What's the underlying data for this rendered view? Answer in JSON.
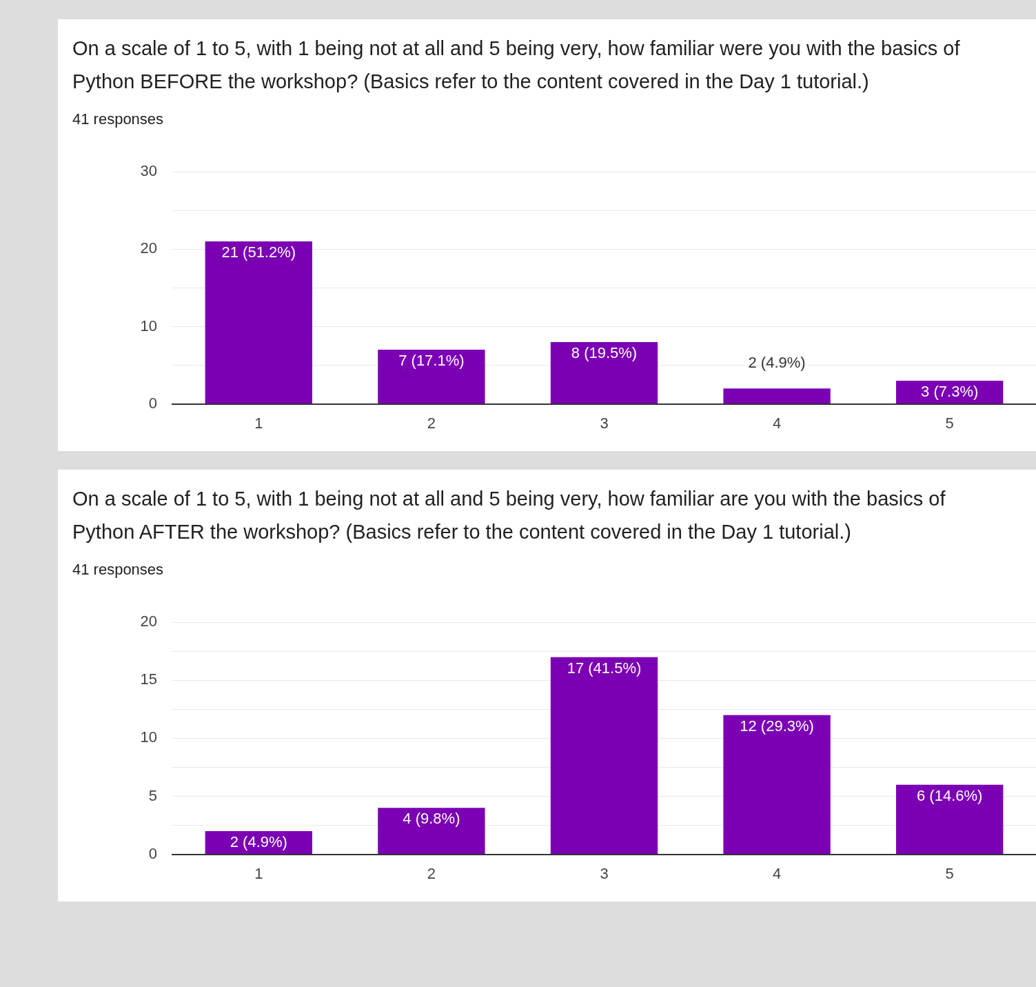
{
  "chart_data": [
    {
      "type": "bar",
      "title": "On a scale of 1 to 5, with 1 being not at all and 5 being very, how familiar were you with the basics of Python BEFORE the workshop? (Basics refer to the content covered in the Day 1 tutorial.)",
      "subtitle": "41 responses",
      "categories": [
        "1",
        "2",
        "3",
        "4",
        "5"
      ],
      "values": [
        21,
        7,
        8,
        2,
        3
      ],
      "color": "#7b00b4",
      "value_labels": [
        "21 (51.2%)",
        "7 (17.1%)",
        "8 (19.5%)",
        "2 (4.9%)",
        "3 (7.3%)"
      ],
      "ylim": [
        0,
        30
      ],
      "yticks": [
        0,
        {
          "value": 5,
          "label": null
        },
        10,
        {
          "value": 15,
          "label": null
        },
        20,
        {
          "value": 25,
          "label": null
        },
        30
      ],
      "grid": "y"
    },
    {
      "type": "bar",
      "title": "On a scale of 1 to 5, with 1 being not at all and 5 being very, how familiar are you with the basics of Python AFTER the workshop? (Basics refer to the content covered in the Day 1 tutorial.)",
      "subtitle": "41 responses",
      "categories": [
        "1",
        "2",
        "3",
        "4",
        "5"
      ],
      "values": [
        2,
        4,
        17,
        12,
        6
      ],
      "color": "#7b00b4",
      "value_labels": [
        "2 (4.9%)",
        "4 (9.8%)",
        "17 (41.5%)",
        "12 (29.3%)",
        "6 (14.6%)"
      ],
      "ylim": [
        0,
        20
      ],
      "yticks": [
        0,
        {
          "value": 2.5,
          "label": null
        },
        5,
        {
          "value": 7.5,
          "label": null
        },
        10,
        {
          "value": 12.5,
          "label": null
        },
        15,
        {
          "value": 17.5,
          "label": null
        },
        20
      ],
      "grid": "y"
    }
  ]
}
